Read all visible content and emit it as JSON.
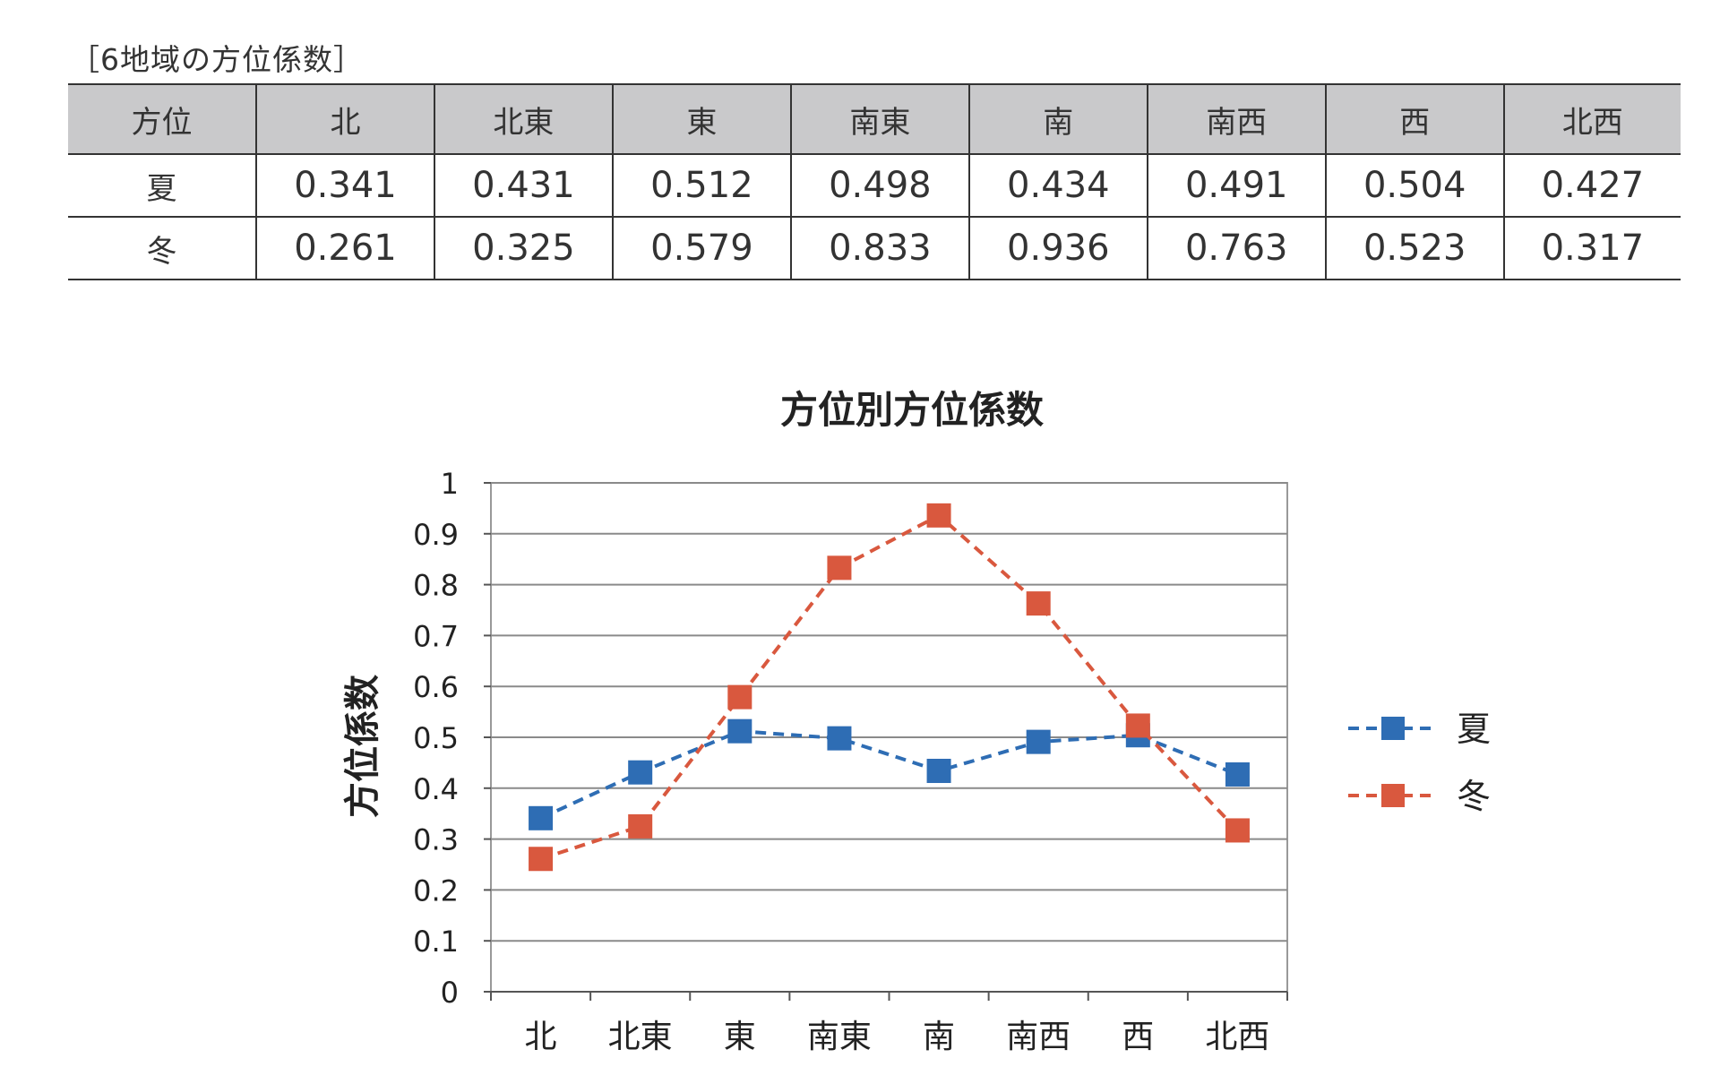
{
  "table": {
    "caption": "［6地域の方位係数］",
    "header": [
      "方位",
      "北",
      "北東",
      "東",
      "南東",
      "南",
      "南西",
      "西",
      "北西"
    ],
    "rows": [
      {
        "label": "夏",
        "values": [
          "0.341",
          "0.431",
          "0.512",
          "0.498",
          "0.434",
          "0.491",
          "0.504",
          "0.427"
        ]
      },
      {
        "label": "冬",
        "values": [
          "0.261",
          "0.325",
          "0.579",
          "0.833",
          "0.936",
          "0.763",
          "0.523",
          "0.317"
        ]
      }
    ]
  },
  "chart_data": {
    "type": "line",
    "title": "方位別方位係数",
    "xlabel": "",
    "ylabel": "方位係数",
    "categories": [
      "北",
      "北東",
      "東",
      "南東",
      "南",
      "南西",
      "西",
      "北西"
    ],
    "ylim": [
      0,
      1
    ],
    "yticks": [
      "0",
      "0.1",
      "0.2",
      "0.3",
      "0.4",
      "0.5",
      "0.6",
      "0.7",
      "0.8",
      "0.9",
      "1"
    ],
    "grid": true,
    "legend_position": "right",
    "series": [
      {
        "name": "夏",
        "values": [
          0.341,
          0.431,
          0.512,
          0.498,
          0.434,
          0.491,
          0.504,
          0.427
        ],
        "color": "#2e6db4",
        "marker": "square",
        "line_style": "dashed"
      },
      {
        "name": "冬",
        "values": [
          0.261,
          0.325,
          0.579,
          0.833,
          0.936,
          0.763,
          0.523,
          0.317
        ],
        "color": "#d9583e",
        "marker": "square",
        "line_style": "dashed"
      }
    ]
  }
}
